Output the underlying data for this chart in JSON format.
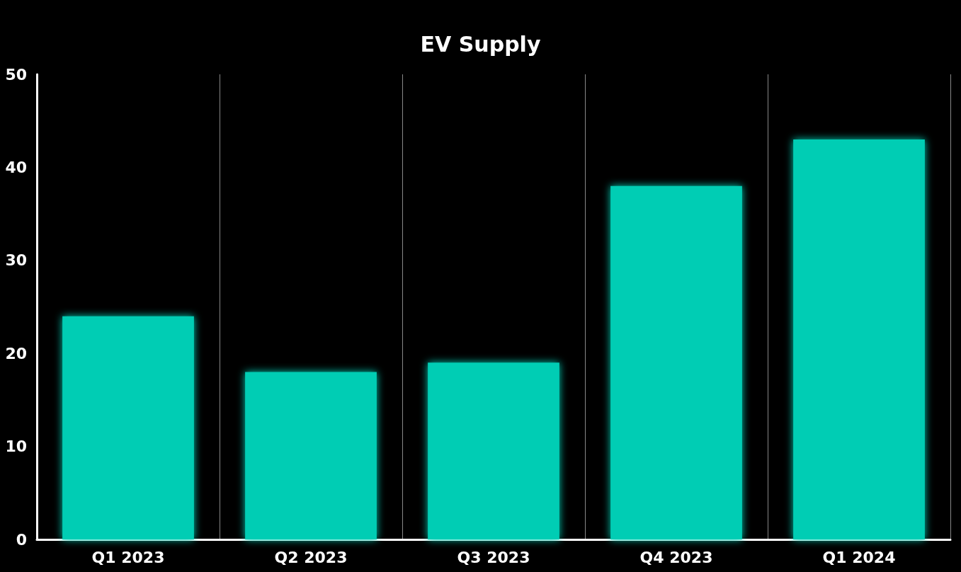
{
  "chart_data": {
    "type": "bar",
    "title": "EV Supply",
    "categories": [
      "Q1 2023",
      "Q2 2023",
      "Q3 2023",
      "Q4 2023",
      "Q1 2024"
    ],
    "values": [
      24,
      18,
      19,
      38,
      43
    ],
    "color": "#00cdb4",
    "ylim": [
      0,
      50
    ],
    "yticks": [
      0,
      10,
      20,
      30,
      40,
      50
    ],
    "grid": "x"
  }
}
